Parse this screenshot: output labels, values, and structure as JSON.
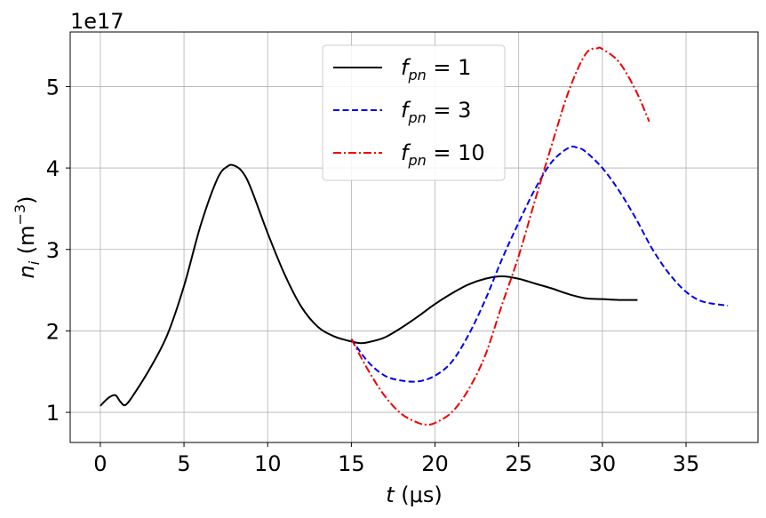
{
  "chart_data": {
    "type": "line",
    "xlabel_var": "t",
    "xlabel_unit": "(μs)",
    "ylabel_var": "n",
    "ylabel_sub": "i",
    "ylabel_unit_pre": "(m",
    "ylabel_unit_exp": "−3",
    "ylabel_unit_post": ")",
    "y_multiplier": "1e17",
    "xlim": [
      -1.8,
      39.3
    ],
    "ylim": [
      0.63,
      5.67
    ],
    "x_ticks": [
      0,
      5,
      10,
      15,
      20,
      25,
      30,
      35
    ],
    "y_ticks": [
      1,
      2,
      3,
      4,
      5
    ],
    "grid": true,
    "legend_position": "top-center",
    "series": [
      {
        "name_var": "f",
        "name_sub": "pn",
        "name_rest": " = 1",
        "color": "#000000",
        "dash": "solid",
        "x": [
          0,
          0.5,
          0.9,
          1.2,
          1.5,
          2,
          3,
          4,
          5,
          6,
          7,
          7.6,
          8,
          8.5,
          9,
          10,
          11,
          12,
          13,
          14,
          15,
          15.5,
          16,
          17,
          18,
          19,
          20,
          21,
          22,
          23,
          24,
          25,
          26,
          27,
          28,
          29,
          30,
          31,
          32.1
        ],
        "y": [
          1.08,
          1.18,
          1.21,
          1.13,
          1.09,
          1.22,
          1.55,
          1.95,
          2.55,
          3.3,
          3.87,
          4.02,
          4.03,
          3.95,
          3.75,
          3.2,
          2.7,
          2.3,
          2.05,
          1.93,
          1.87,
          1.85,
          1.86,
          1.92,
          2.04,
          2.18,
          2.33,
          2.46,
          2.57,
          2.64,
          2.67,
          2.64,
          2.58,
          2.52,
          2.45,
          2.4,
          2.39,
          2.38,
          2.38
        ]
      },
      {
        "name_var": "f",
        "name_sub": "pn",
        "name_rest": " = 3",
        "color": "#0000ee",
        "dash": "dashed",
        "x": [
          15,
          16,
          17,
          18,
          19,
          20,
          21,
          22,
          23,
          24,
          25,
          26,
          27,
          28,
          28.5,
          29,
          30,
          31,
          32,
          33,
          34,
          35,
          36,
          37.5
        ],
        "y": [
          1.9,
          1.62,
          1.45,
          1.39,
          1.38,
          1.45,
          1.62,
          1.95,
          2.38,
          2.88,
          3.33,
          3.75,
          4.08,
          4.25,
          4.25,
          4.2,
          4.0,
          3.72,
          3.38,
          3.0,
          2.7,
          2.48,
          2.36,
          2.31
        ]
      },
      {
        "name_var": "f",
        "name_sub": "pn",
        "name_rest": " = 10",
        "color": "#ee0000",
        "dash": "dashdot",
        "x": [
          15,
          16,
          17,
          18,
          19,
          19.5,
          20,
          21,
          22,
          23,
          24,
          25,
          26,
          27,
          28,
          29,
          29.7,
          30,
          31,
          32,
          32.8
        ],
        "y": [
          1.9,
          1.52,
          1.2,
          0.98,
          0.87,
          0.85,
          0.87,
          1.0,
          1.28,
          1.7,
          2.32,
          2.92,
          3.62,
          4.3,
          4.95,
          5.4,
          5.47,
          5.46,
          5.3,
          4.95,
          4.57
        ]
      }
    ]
  }
}
